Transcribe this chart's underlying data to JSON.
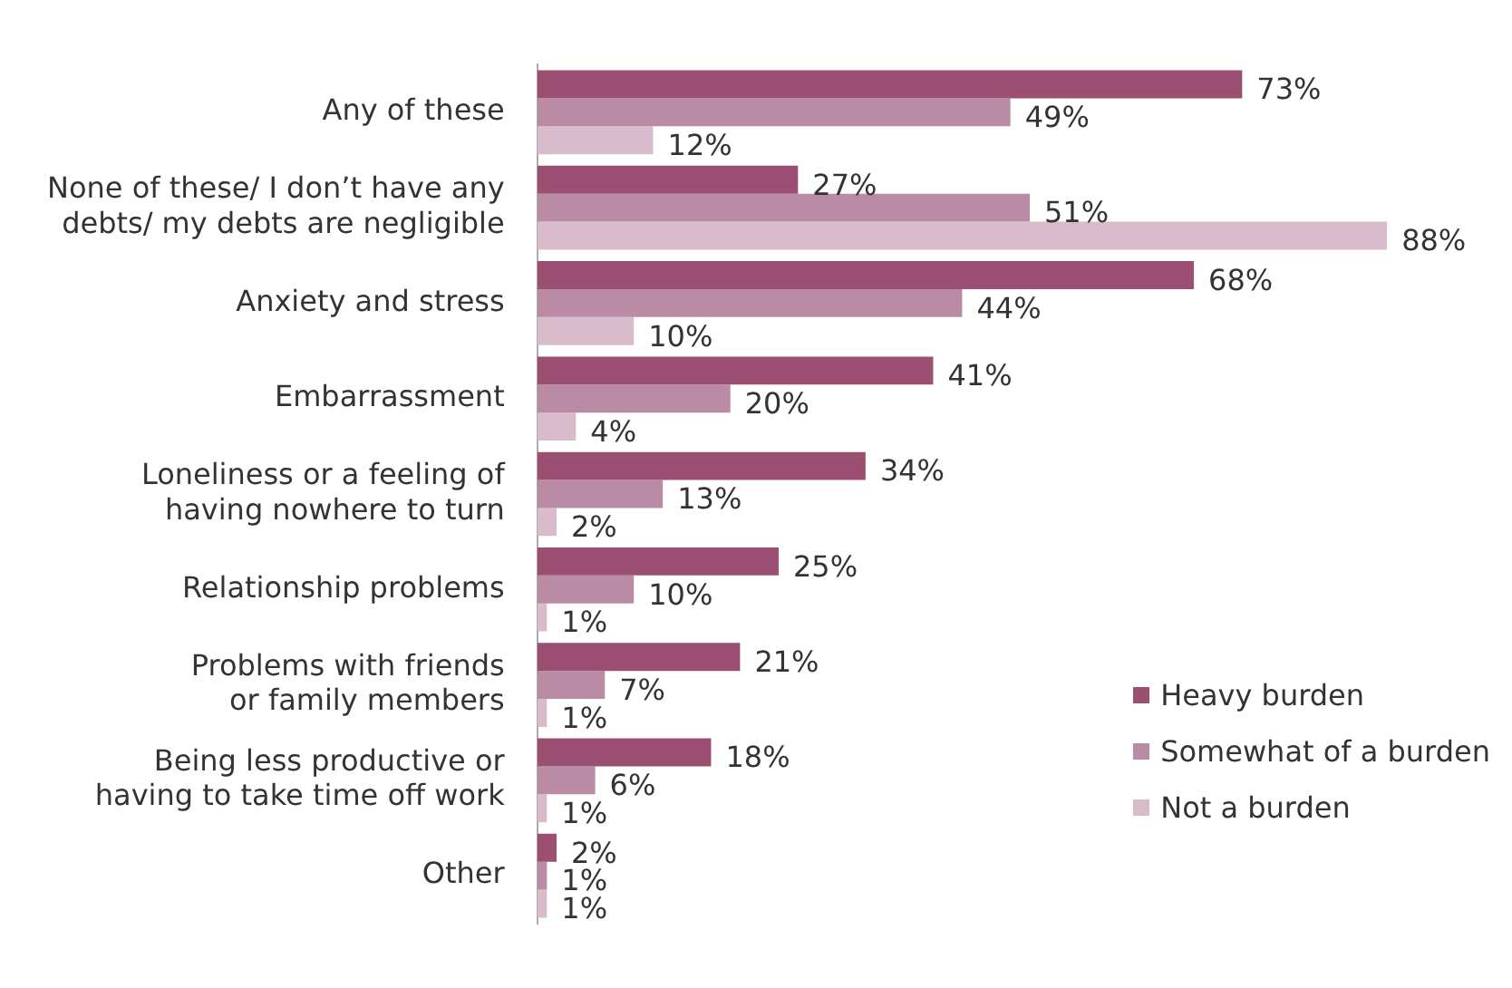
{
  "chart_data": {
    "type": "bar",
    "orientation": "horizontal",
    "legend": "right",
    "categories": [
      "Any of these",
      "None of these/ I don’t have any\ndebts/ my debts are negligible",
      "Anxiety and stress",
      "Embarrassment",
      "Loneliness or a feeling of\nhaving nowhere to turn",
      "Relationship problems",
      "Problems with friends\nor family members",
      "Being less productive or\nhaving to take time off work",
      "Other"
    ],
    "series": [
      {
        "name": "Heavy burden",
        "color": "#9b4f72",
        "values": [
          73,
          27,
          68,
          41,
          34,
          25,
          21,
          18,
          2
        ],
        "value_labels": [
          "73%",
          "27%",
          "68%",
          "41%",
          "34%",
          "25%",
          "21%",
          "18%",
          "2%"
        ]
      },
      {
        "name": "Somewhat of a burden",
        "color": "#b98ba4",
        "values": [
          49,
          51,
          44,
          20,
          13,
          10,
          7,
          6,
          1
        ],
        "value_labels": [
          "49%",
          "51%",
          "44%",
          "20%",
          "13%",
          "10%",
          "7%",
          "6%",
          "1%"
        ]
      },
      {
        "name": "Not a burden",
        "color": "#d9bccb",
        "values": [
          12,
          88,
          10,
          4,
          2,
          1,
          1,
          1,
          1
        ],
        "value_labels": [
          "12%",
          "88%",
          "10%",
          "4%",
          "2%",
          "1%",
          "1%",
          "1%",
          "1%"
        ]
      }
    ]
  }
}
